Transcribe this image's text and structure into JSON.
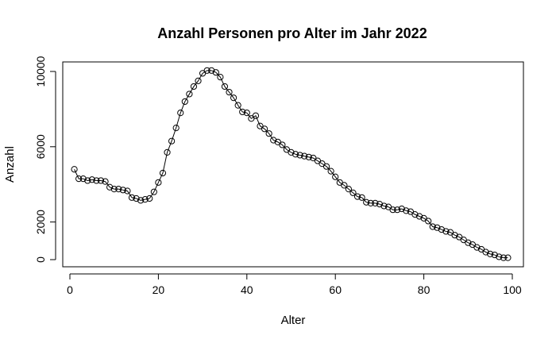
{
  "chart_data": {
    "type": "line",
    "title": "Anzahl Personen pro Alter im Jahr 2022",
    "xlabel": "Alter",
    "ylabel": "Anzahl",
    "xlim": [
      0,
      100
    ],
    "ylim": [
      0,
      10000
    ],
    "x_ticks": [
      "0",
      "20",
      "40",
      "60",
      "80",
      "100"
    ],
    "y_ticks": [
      "0",
      "2000",
      "6000",
      "10000"
    ],
    "grid": false,
    "legend": "none",
    "series": [
      {
        "x": [
          1,
          2,
          3,
          4,
          5,
          6,
          7,
          8,
          9,
          10,
          11,
          12,
          13,
          14,
          15,
          16,
          17,
          18,
          19,
          20,
          21,
          22,
          23,
          24,
          25,
          26,
          27,
          28,
          29,
          30,
          31,
          32,
          33,
          34,
          35,
          36,
          37,
          38,
          39,
          40,
          41,
          42,
          43,
          44,
          45,
          46,
          47,
          48,
          49,
          50,
          51,
          52,
          53,
          54,
          55,
          56,
          57,
          58,
          59,
          60,
          61,
          62,
          63,
          64,
          65,
          66,
          67,
          68,
          69,
          70,
          71,
          72,
          73,
          74,
          75,
          76,
          77,
          78,
          79,
          80,
          81,
          82,
          83,
          84,
          85,
          86,
          87,
          88,
          89,
          90,
          91,
          92,
          93,
          94,
          95,
          96,
          97,
          98,
          99
        ],
        "values": [
          4800,
          4300,
          4300,
          4200,
          4250,
          4200,
          4200,
          4150,
          3850,
          3750,
          3750,
          3700,
          3650,
          3300,
          3250,
          3150,
          3200,
          3250,
          3600,
          4100,
          4600,
          5700,
          6300,
          7000,
          7800,
          8400,
          8800,
          9200,
          9500,
          9900,
          10050,
          10050,
          9950,
          9700,
          9200,
          8900,
          8600,
          8200,
          7850,
          7800,
          7500,
          7650,
          7100,
          6950,
          6700,
          6350,
          6250,
          6100,
          5850,
          5700,
          5600,
          5550,
          5500,
          5450,
          5400,
          5250,
          5100,
          4950,
          4700,
          4400,
          4100,
          3950,
          3750,
          3550,
          3350,
          3300,
          3050,
          3000,
          3000,
          2950,
          2850,
          2800,
          2650,
          2650,
          2700,
          2600,
          2550,
          2400,
          2300,
          2200,
          2050,
          1750,
          1700,
          1600,
          1500,
          1450,
          1300,
          1200,
          1050,
          900,
          800,
          650,
          550,
          400,
          300,
          250,
          150,
          100,
          100
        ]
      }
    ]
  }
}
